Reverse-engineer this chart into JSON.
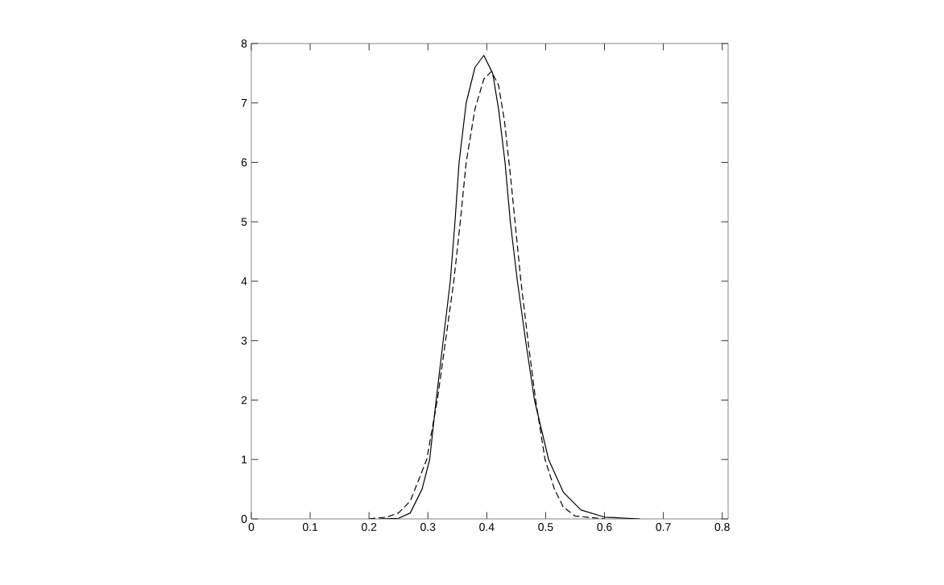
{
  "chart_data": {
    "type": "line",
    "xlim": [
      0,
      0.81
    ],
    "ylim": [
      0,
      8
    ],
    "xticks": [
      0,
      0.1,
      0.2,
      0.3,
      0.4,
      0.5,
      0.6,
      0.7,
      0.8
    ],
    "yticks": [
      0,
      1,
      2,
      3,
      4,
      5,
      6,
      7,
      8
    ],
    "grid": false,
    "series": [
      {
        "color": "#000000",
        "line_style": "solid",
        "x": [
          0.22,
          0.25,
          0.27,
          0.29,
          0.303,
          0.314,
          0.326,
          0.338,
          0.346,
          0.353,
          0.365,
          0.38,
          0.395,
          0.41,
          0.42,
          0.431,
          0.44,
          0.452,
          0.466,
          0.481,
          0.505,
          0.53,
          0.56,
          0.6,
          0.66
        ],
        "values": [
          0,
          0.01,
          0.1,
          0.5,
          1,
          2,
          3,
          4,
          5,
          6,
          7,
          7.6,
          7.8,
          7.5,
          6.9,
          6,
          5,
          4,
          3,
          2,
          1,
          0.45,
          0.15,
          0.03,
          0
        ]
      },
      {
        "color": "#000000",
        "line_style": "dashed",
        "x": [
          0.2,
          0.23,
          0.25,
          0.27,
          0.298,
          0.316,
          0.33,
          0.344,
          0.355,
          0.365,
          0.38,
          0.395,
          0.408,
          0.42,
          0.43,
          0.44,
          0.45,
          0.458,
          0.47,
          0.483,
          0.499,
          0.515,
          0.53,
          0.55,
          0.6
        ],
        "values": [
          0,
          0.03,
          0.1,
          0.3,
          1,
          2,
          3,
          4,
          5,
          6,
          6.9,
          7.4,
          7.53,
          7.3,
          6.7,
          5.8,
          4.8,
          4,
          3,
          2,
          1,
          0.5,
          0.2,
          0.05,
          0
        ]
      }
    ]
  }
}
